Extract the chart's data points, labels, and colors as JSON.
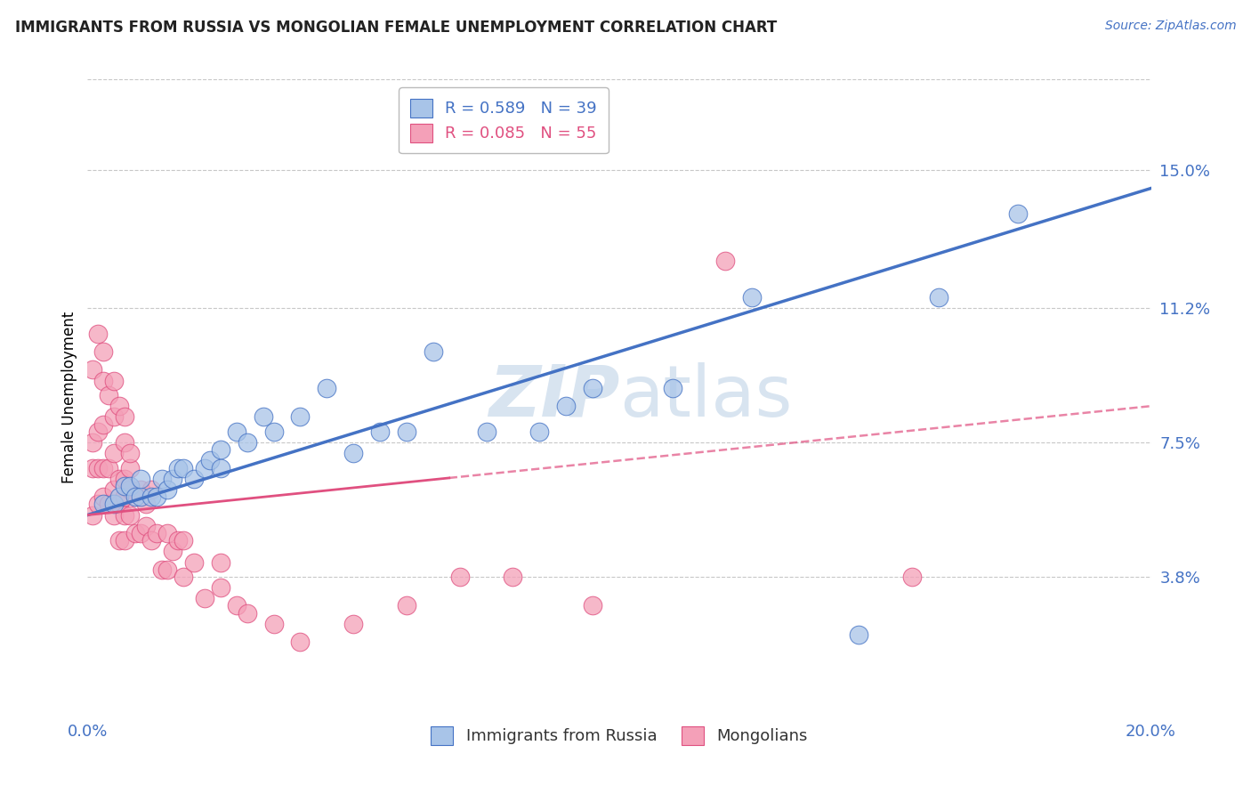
{
  "title": "IMMIGRANTS FROM RUSSIA VS MONGOLIAN FEMALE UNEMPLOYMENT CORRELATION CHART",
  "source": "Source: ZipAtlas.com",
  "ylabel": "Female Unemployment",
  "xlim": [
    0.0,
    0.2
  ],
  "ylim": [
    0.0,
    0.175
  ],
  "ytick_values": [
    0.038,
    0.075,
    0.112,
    0.15
  ],
  "ytick_labels": [
    "3.8%",
    "7.5%",
    "11.2%",
    "15.0%"
  ],
  "russia_R": 0.589,
  "russia_N": 39,
  "mongolia_R": 0.085,
  "mongolia_N": 55,
  "russia_scatter_x": [
    0.003,
    0.005,
    0.006,
    0.007,
    0.008,
    0.009,
    0.01,
    0.01,
    0.012,
    0.013,
    0.014,
    0.015,
    0.016,
    0.017,
    0.018,
    0.02,
    0.022,
    0.023,
    0.025,
    0.025,
    0.028,
    0.03,
    0.033,
    0.035,
    0.04,
    0.045,
    0.05,
    0.055,
    0.06,
    0.065,
    0.075,
    0.085,
    0.09,
    0.095,
    0.11,
    0.125,
    0.145,
    0.16,
    0.175
  ],
  "russia_scatter_y": [
    0.058,
    0.058,
    0.06,
    0.063,
    0.063,
    0.06,
    0.06,
    0.065,
    0.06,
    0.06,
    0.065,
    0.062,
    0.065,
    0.068,
    0.068,
    0.065,
    0.068,
    0.07,
    0.068,
    0.073,
    0.078,
    0.075,
    0.082,
    0.078,
    0.082,
    0.09,
    0.072,
    0.078,
    0.078,
    0.1,
    0.078,
    0.078,
    0.085,
    0.09,
    0.09,
    0.115,
    0.022,
    0.115,
    0.138
  ],
  "mongolia_scatter_x": [
    0.001,
    0.001,
    0.001,
    0.002,
    0.002,
    0.002,
    0.003,
    0.003,
    0.003,
    0.004,
    0.004,
    0.005,
    0.005,
    0.005,
    0.006,
    0.006,
    0.006,
    0.007,
    0.007,
    0.007,
    0.007,
    0.008,
    0.008,
    0.008,
    0.009,
    0.009,
    0.01,
    0.01,
    0.011,
    0.011,
    0.012,
    0.012,
    0.013,
    0.014,
    0.015,
    0.015,
    0.016,
    0.017,
    0.018,
    0.018,
    0.02,
    0.022,
    0.025,
    0.025,
    0.028,
    0.03,
    0.035,
    0.04,
    0.05,
    0.06,
    0.07,
    0.08,
    0.095,
    0.12,
    0.155
  ],
  "mongolia_scatter_y": [
    0.055,
    0.068,
    0.075,
    0.058,
    0.068,
    0.078,
    0.06,
    0.068,
    0.08,
    0.058,
    0.068,
    0.055,
    0.062,
    0.072,
    0.048,
    0.058,
    0.065,
    0.055,
    0.06,
    0.065,
    0.048,
    0.055,
    0.062,
    0.068,
    0.05,
    0.06,
    0.05,
    0.062,
    0.052,
    0.058,
    0.048,
    0.062,
    0.05,
    0.04,
    0.04,
    0.05,
    0.045,
    0.048,
    0.038,
    0.048,
    0.042,
    0.032,
    0.035,
    0.042,
    0.03,
    0.028,
    0.025,
    0.02,
    0.025,
    0.03,
    0.038,
    0.038,
    0.03,
    0.125,
    0.038
  ],
  "mongolia_high_x": [
    0.001,
    0.002,
    0.003,
    0.003,
    0.004,
    0.005,
    0.005,
    0.006,
    0.007,
    0.007,
    0.008
  ],
  "mongolia_high_y": [
    0.095,
    0.105,
    0.092,
    0.1,
    0.088,
    0.082,
    0.092,
    0.085,
    0.075,
    0.082,
    0.072
  ],
  "russia_line_color": "#4472C4",
  "mongolia_line_color": "#E05080",
  "russia_dot_color": "#A8C4E8",
  "mongolia_dot_color": "#F4A0B8",
  "background_color": "#FFFFFF",
  "grid_color": "#C8C8C8",
  "tick_label_color": "#4472C4",
  "watermark_color": "#D8E4F0",
  "russia_trend_x0": 0.0,
  "russia_trend_y0": 0.055,
  "russia_trend_x1": 0.2,
  "russia_trend_y1": 0.145,
  "mongolia_trend_x0": 0.0,
  "mongolia_trend_y0": 0.055,
  "mongolia_trend_x1": 0.2,
  "mongolia_trend_y1": 0.085
}
